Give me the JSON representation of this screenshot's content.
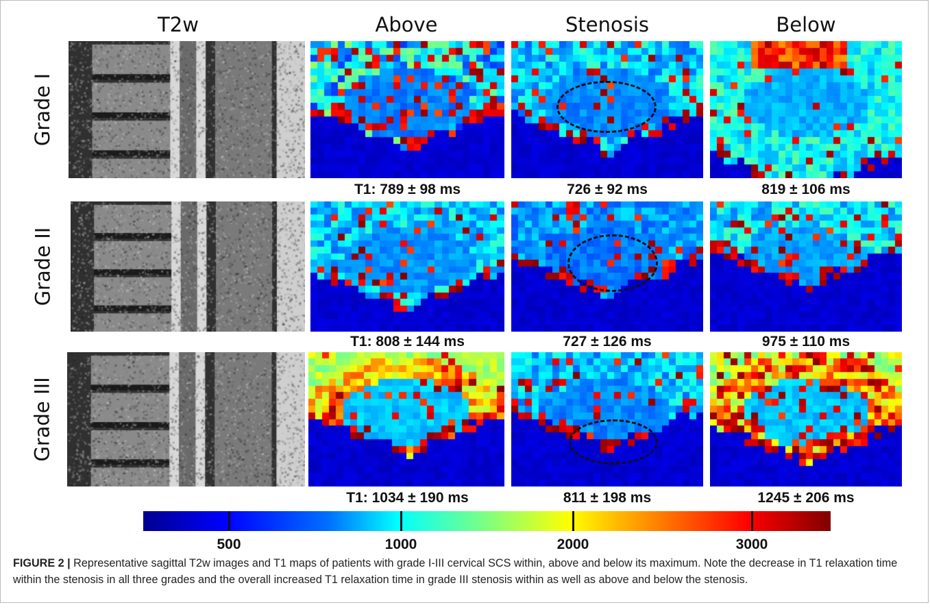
{
  "headers": [
    "T2w",
    "Above",
    "Stenosis",
    "Below"
  ],
  "rows": [
    {
      "label": "Grade I",
      "values": [
        "T1: 789 ± 98 ms",
        "726 ± 92 ms",
        "819 ± 106 ms"
      ]
    },
    {
      "label": "Grade II",
      "values": [
        "T1: 808 ± 144 ms",
        "727 ± 126 ms",
        "975 ± 110 ms"
      ]
    },
    {
      "label": "Grade III",
      "values": [
        "T1: 1034 ± 190 ms",
        "811 ± 198 ms",
        "1245 ± 206 ms"
      ]
    }
  ],
  "colorbar": {
    "ticks": [
      "500",
      "1000",
      "2000",
      "3000"
    ],
    "tick_fractions": [
      0.125,
      0.375,
      0.625,
      0.885
    ],
    "colors": [
      "#00008f",
      "#0000ff",
      "#00ffff",
      "#ffff00",
      "#ff0000",
      "#800000"
    ]
  },
  "caption": {
    "label": "FIGURE 2 |",
    "text": " Representative sagittal T2w images and T1 maps of patients with grade I-III cervical SCS within, above and below its maximum. Note the decrease in T1 relaxation time within the stenosis in all three grades and the overall increased T1 relaxation time in grade III stenosis within as well as above and below the stenosis."
  }
}
